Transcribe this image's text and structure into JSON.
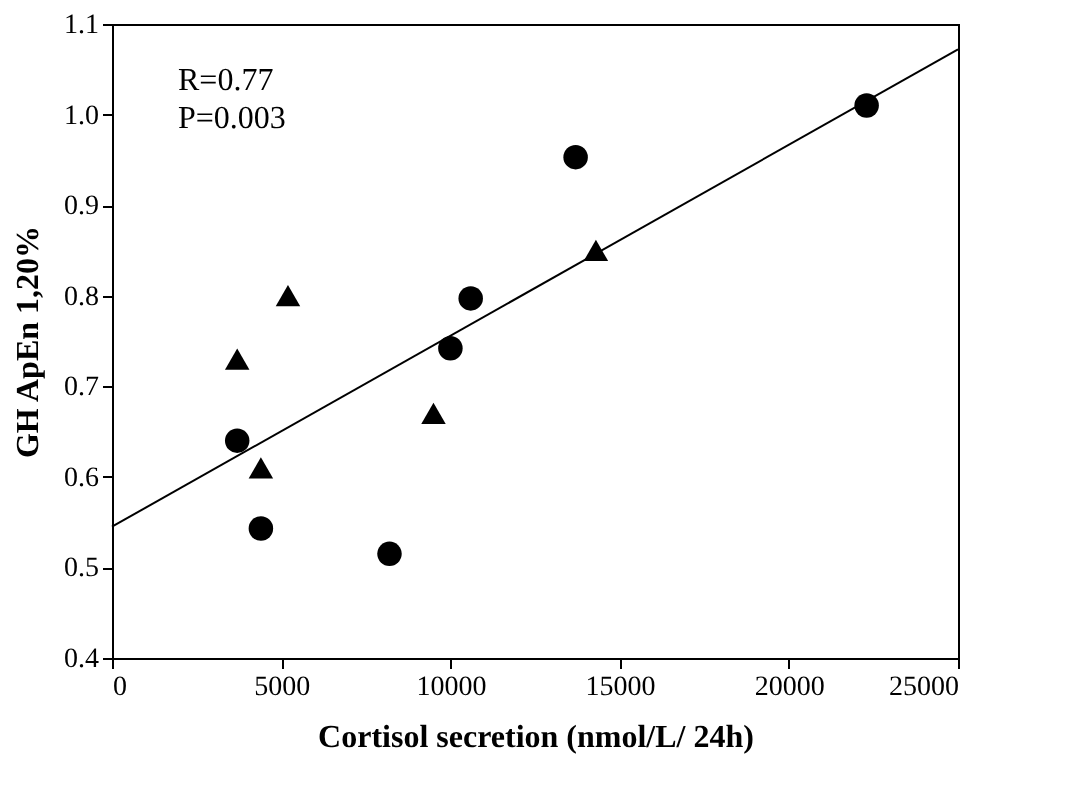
{
  "chart_data": {
    "type": "scatter",
    "xlabel": "Cortisol secretion (nmol/L/ 24h)",
    "ylabel": "GH ApEn 1,20%",
    "annotations": [
      "R=0.77",
      "P=0.003"
    ],
    "xlim": [
      0,
      25000
    ],
    "xticks": [
      0,
      5000,
      10000,
      15000,
      20000,
      25000
    ],
    "ylim": [
      0.4,
      1.1
    ],
    "yticks": [
      0.4,
      0.5,
      0.6,
      0.7,
      0.8,
      0.9,
      {
        "value": 1,
        "label": "1.0"
      },
      1.1
    ],
    "grid": false,
    "series": [
      {
        "marker": "circle",
        "color": "#000000",
        "x": [
          3700,
          4400,
          8200,
          10000,
          10600,
          13700,
          22300
        ],
        "values": [
          0.64,
          0.543,
          0.515,
          0.742,
          0.797,
          0.953,
          1.01
        ]
      },
      {
        "marker": "triangle",
        "color": "#000000",
        "x": [
          3700,
          4400,
          5200,
          9500,
          14300
        ],
        "values": [
          0.73,
          0.61,
          0.8,
          0.67,
          0.85
        ]
      },
      {
        "type": "line",
        "line_style": "solid",
        "color": "#000000",
        "x": [
          0,
          25000
        ],
        "values": [
          0.545,
          1.072
        ]
      }
    ]
  }
}
